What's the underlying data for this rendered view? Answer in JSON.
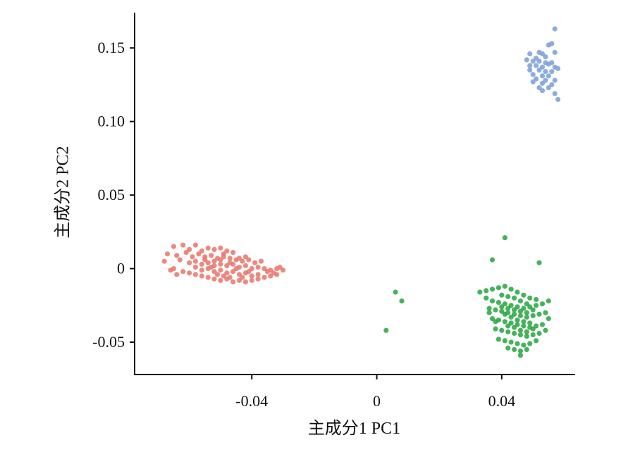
{
  "chart_data": {
    "type": "scatter",
    "title": "",
    "xlabel": "主成分1 PC1",
    "ylabel": "主成分2 PC2",
    "xlim": [
      -0.0775,
      0.0635
    ],
    "ylim": [
      -0.072,
      0.174
    ],
    "x_ticks": [
      {
        "value": -0.04,
        "label": "-0.04"
      },
      {
        "value": 0,
        "label": "0"
      },
      {
        "value": 0.04,
        "label": "0.04"
      }
    ],
    "y_ticks": [
      {
        "value": 0.15,
        "label": "0.15"
      },
      {
        "value": 0.1,
        "label": "0.10"
      },
      {
        "value": 0.05,
        "label": "0.05"
      },
      {
        "value": 0,
        "label": "0"
      },
      {
        "value": -0.05,
        "label": "-0.05"
      }
    ],
    "grid": false,
    "legend": "none",
    "series": [
      {
        "color": "#e8766a",
        "points": [
          [
            -0.065,
            0.015
          ],
          [
            -0.062,
            0.016
          ],
          [
            -0.06,
            0.013
          ],
          [
            -0.058,
            0.016
          ],
          [
            -0.056,
            0.012
          ],
          [
            -0.054,
            0.014
          ],
          [
            -0.052,
            0.013
          ],
          [
            -0.05,
            0.014
          ],
          [
            -0.048,
            0.012
          ],
          [
            -0.046,
            0.011
          ],
          [
            -0.067,
            0.01
          ],
          [
            -0.064,
            0.009
          ],
          [
            -0.061,
            0.011
          ],
          [
            -0.059,
            0.008
          ],
          [
            -0.057,
            0.01
          ],
          [
            -0.055,
            0.008
          ],
          [
            -0.053,
            0.009
          ],
          [
            -0.051,
            0.007
          ],
          [
            -0.049,
            0.008
          ],
          [
            -0.047,
            0.007
          ],
          [
            -0.045,
            0.006
          ],
          [
            -0.043,
            0.005
          ],
          [
            -0.041,
            0.006
          ],
          [
            -0.039,
            0.004
          ],
          [
            -0.037,
            0.005
          ],
          [
            -0.068,
            0.005
          ],
          [
            -0.063,
            0.006
          ],
          [
            -0.06,
            0.004
          ],
          [
            -0.058,
            0.005
          ],
          [
            -0.056,
            0.003
          ],
          [
            -0.054,
            0.004
          ],
          [
            -0.052,
            0.002
          ],
          [
            -0.05,
            0.003
          ],
          [
            -0.048,
            0.002
          ],
          [
            -0.046,
            0.003
          ],
          [
            -0.044,
            0.001
          ],
          [
            -0.042,
            0.002
          ],
          [
            -0.04,
            0.0
          ],
          [
            -0.038,
            0.001
          ],
          [
            -0.036,
            0.0
          ],
          [
            -0.034,
            -0.001
          ],
          [
            -0.032,
            0.0
          ],
          [
            -0.03,
            -0.001
          ],
          [
            -0.058,
            0.001
          ],
          [
            -0.056,
            -0.001
          ],
          [
            -0.054,
            0.0
          ],
          [
            -0.052,
            -0.002
          ],
          [
            -0.05,
            -0.001
          ],
          [
            -0.048,
            -0.003
          ],
          [
            -0.046,
            -0.002
          ],
          [
            -0.044,
            -0.004
          ],
          [
            -0.042,
            -0.003
          ],
          [
            -0.04,
            -0.005
          ],
          [
            -0.038,
            -0.004
          ],
          [
            -0.036,
            -0.006
          ],
          [
            -0.034,
            -0.005
          ],
          [
            -0.032,
            -0.004
          ],
          [
            -0.062,
            -0.002
          ],
          [
            -0.06,
            -0.003
          ],
          [
            -0.058,
            -0.004
          ],
          [
            -0.056,
            -0.005
          ],
          [
            -0.054,
            -0.006
          ],
          [
            -0.052,
            -0.007
          ],
          [
            -0.05,
            -0.008
          ],
          [
            -0.048,
            -0.007
          ],
          [
            -0.046,
            -0.009
          ],
          [
            -0.044,
            -0.008
          ],
          [
            -0.042,
            -0.009
          ],
          [
            -0.04,
            -0.008
          ],
          [
            -0.038,
            -0.007
          ],
          [
            -0.065,
            0.0
          ],
          [
            -0.066,
            -0.001
          ],
          [
            -0.064,
            -0.004
          ],
          [
            -0.052,
            0.005
          ],
          [
            -0.05,
            0.006
          ],
          [
            -0.049,
            0.01
          ],
          [
            -0.047,
            0.004
          ],
          [
            -0.045,
            0.0
          ],
          [
            -0.043,
            -0.006
          ],
          [
            -0.041,
            -0.002
          ],
          [
            -0.055,
            0.006
          ],
          [
            -0.053,
            0.001
          ],
          [
            -0.051,
            -0.004
          ],
          [
            -0.049,
            -0.005
          ],
          [
            -0.047,
            -0.006
          ],
          [
            -0.035,
            -0.002
          ],
          [
            -0.033,
            -0.003
          ],
          [
            -0.031,
            0.001
          ],
          [
            -0.044,
            0.007
          ],
          [
            -0.042,
            0.008
          ]
        ]
      },
      {
        "color": "#26a43f",
        "points": [
          [
            0.041,
            0.021
          ],
          [
            0.052,
            0.004
          ],
          [
            0.037,
            0.006
          ],
          [
            0.006,
            -0.016
          ],
          [
            0.008,
            -0.022
          ],
          [
            0.003,
            -0.042
          ],
          [
            0.033,
            -0.016
          ],
          [
            0.035,
            -0.015
          ],
          [
            0.037,
            -0.014
          ],
          [
            0.039,
            -0.013
          ],
          [
            0.041,
            -0.012
          ],
          [
            0.043,
            -0.014
          ],
          [
            0.045,
            -0.016
          ],
          [
            0.047,
            -0.018
          ],
          [
            0.049,
            -0.02
          ],
          [
            0.051,
            -0.021
          ],
          [
            0.035,
            -0.02
          ],
          [
            0.037,
            -0.022
          ],
          [
            0.039,
            -0.023
          ],
          [
            0.041,
            -0.024
          ],
          [
            0.043,
            -0.025
          ],
          [
            0.045,
            -0.026
          ],
          [
            0.047,
            -0.027
          ],
          [
            0.049,
            -0.026
          ],
          [
            0.051,
            -0.025
          ],
          [
            0.053,
            -0.024
          ],
          [
            0.036,
            -0.027
          ],
          [
            0.038,
            -0.028
          ],
          [
            0.04,
            -0.029
          ],
          [
            0.042,
            -0.03
          ],
          [
            0.044,
            -0.031
          ],
          [
            0.046,
            -0.032
          ],
          [
            0.048,
            -0.033
          ],
          [
            0.05,
            -0.032
          ],
          [
            0.052,
            -0.031
          ],
          [
            0.054,
            -0.03
          ],
          [
            0.037,
            -0.034
          ],
          [
            0.039,
            -0.035
          ],
          [
            0.041,
            -0.036
          ],
          [
            0.043,
            -0.037
          ],
          [
            0.045,
            -0.038
          ],
          [
            0.047,
            -0.039
          ],
          [
            0.049,
            -0.04
          ],
          [
            0.051,
            -0.039
          ],
          [
            0.053,
            -0.038
          ],
          [
            0.038,
            -0.041
          ],
          [
            0.04,
            -0.042
          ],
          [
            0.042,
            -0.043
          ],
          [
            0.044,
            -0.044
          ],
          [
            0.046,
            -0.045
          ],
          [
            0.048,
            -0.046
          ],
          [
            0.05,
            -0.045
          ],
          [
            0.052,
            -0.044
          ],
          [
            0.039,
            -0.048
          ],
          [
            0.041,
            -0.049
          ],
          [
            0.043,
            -0.05
          ],
          [
            0.045,
            -0.051
          ],
          [
            0.047,
            -0.052
          ],
          [
            0.049,
            -0.051
          ],
          [
            0.051,
            -0.049
          ],
          [
            0.042,
            -0.054
          ],
          [
            0.044,
            -0.055
          ],
          [
            0.046,
            -0.056
          ],
          [
            0.048,
            -0.055
          ],
          [
            0.046,
            -0.059
          ],
          [
            0.055,
            -0.022
          ],
          [
            0.055,
            -0.034
          ],
          [
            0.054,
            -0.042
          ],
          [
            0.036,
            -0.03
          ],
          [
            0.038,
            -0.036
          ],
          [
            0.04,
            -0.018
          ],
          [
            0.042,
            -0.019
          ],
          [
            0.044,
            -0.02
          ],
          [
            0.046,
            -0.022
          ],
          [
            0.048,
            -0.024
          ],
          [
            0.05,
            -0.028
          ],
          [
            0.04,
            -0.026
          ],
          [
            0.042,
            -0.027
          ],
          [
            0.044,
            -0.028
          ],
          [
            0.046,
            -0.029
          ],
          [
            0.048,
            -0.03
          ],
          [
            0.041,
            -0.031
          ],
          [
            0.043,
            -0.033
          ],
          [
            0.045,
            -0.035
          ],
          [
            0.047,
            -0.036
          ],
          [
            0.049,
            -0.037
          ],
          [
            0.042,
            -0.039
          ],
          [
            0.044,
            -0.04
          ],
          [
            0.046,
            -0.042
          ],
          [
            0.048,
            -0.043
          ],
          [
            0.05,
            -0.041
          ]
        ]
      },
      {
        "color": "#7a9dd6",
        "points": [
          [
            0.057,
            0.163
          ],
          [
            0.056,
            0.153
          ],
          [
            0.055,
            0.152
          ],
          [
            0.052,
            0.147
          ],
          [
            0.053,
            0.146
          ],
          [
            0.049,
            0.146
          ],
          [
            0.057,
            0.147
          ],
          [
            0.054,
            0.144
          ],
          [
            0.051,
            0.143
          ],
          [
            0.048,
            0.142
          ],
          [
            0.05,
            0.141
          ],
          [
            0.052,
            0.141
          ],
          [
            0.054,
            0.14
          ],
          [
            0.056,
            0.14
          ],
          [
            0.055,
            0.139
          ],
          [
            0.049,
            0.138
          ],
          [
            0.051,
            0.138
          ],
          [
            0.053,
            0.137
          ],
          [
            0.057,
            0.137
          ],
          [
            0.058,
            0.136
          ],
          [
            0.049,
            0.135
          ],
          [
            0.052,
            0.135
          ],
          [
            0.054,
            0.134
          ],
          [
            0.056,
            0.134
          ],
          [
            0.05,
            0.132
          ],
          [
            0.053,
            0.131
          ],
          [
            0.055,
            0.131
          ],
          [
            0.051,
            0.129
          ],
          [
            0.054,
            0.128
          ],
          [
            0.057,
            0.128
          ],
          [
            0.05,
            0.127
          ],
          [
            0.053,
            0.126
          ],
          [
            0.056,
            0.125
          ],
          [
            0.052,
            0.123
          ],
          [
            0.055,
            0.123
          ],
          [
            0.053,
            0.121
          ],
          [
            0.057,
            0.119
          ],
          [
            0.058,
            0.115
          ]
        ]
      }
    ]
  }
}
